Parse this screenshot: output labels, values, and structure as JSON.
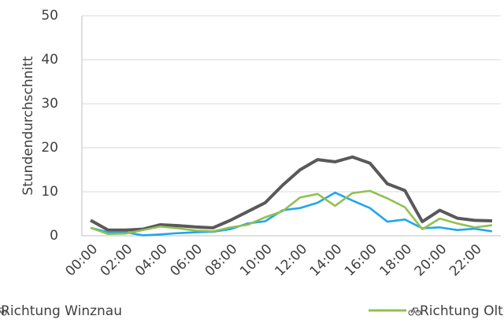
{
  "chart_data": {
    "type": "line",
    "y_label": "Stundendurchschnitt",
    "categories": [
      "00:00",
      null,
      "02:00",
      null,
      "04:00",
      null,
      "06:00",
      null,
      "08:00",
      null,
      "10:00",
      null,
      "12:00",
      null,
      "14:00",
      null,
      "16:00",
      null,
      "18:00",
      null,
      "20:00",
      null,
      "22:00",
      null
    ],
    "series": [
      {
        "color": "#595959",
        "values": [
          3.5,
          1.3,
          1.3,
          1.5,
          2.5,
          2.3,
          2.0,
          1.8,
          3.5,
          5.5,
          7.5,
          11.5,
          15.0,
          17.3,
          16.8,
          17.9,
          16.5,
          11.8,
          10.3,
          3.2,
          5.8,
          4.0,
          3.5,
          3.4
        ]
      },
      {
        "name": "Richtung Winznau",
        "color": "#22a5ee",
        "values": [
          1.8,
          0.8,
          0.8,
          0.1,
          0.3,
          0.6,
          0.8,
          0.9,
          1.5,
          2.8,
          3.3,
          5.8,
          6.3,
          7.5,
          9.8,
          8.0,
          6.3,
          3.2,
          3.7,
          1.7,
          1.9,
          1.3,
          1.6,
          1.0
        ]
      },
      {
        "name": "Richtung Olten Bahnhof",
        "color": "#92c050",
        "values": [
          1.8,
          0.4,
          0.5,
          1.3,
          2.1,
          1.7,
          1.2,
          1.0,
          1.9,
          2.5,
          4.2,
          5.6,
          8.7,
          9.5,
          6.8,
          9.7,
          10.2,
          8.5,
          6.5,
          1.5,
          3.9,
          2.8,
          1.9,
          2.4
        ]
      }
    ],
    "ylim": [
      0,
      50
    ],
    "yticks": [
      0,
      10,
      20,
      30,
      40,
      50
    ],
    "grid": true
  }
}
